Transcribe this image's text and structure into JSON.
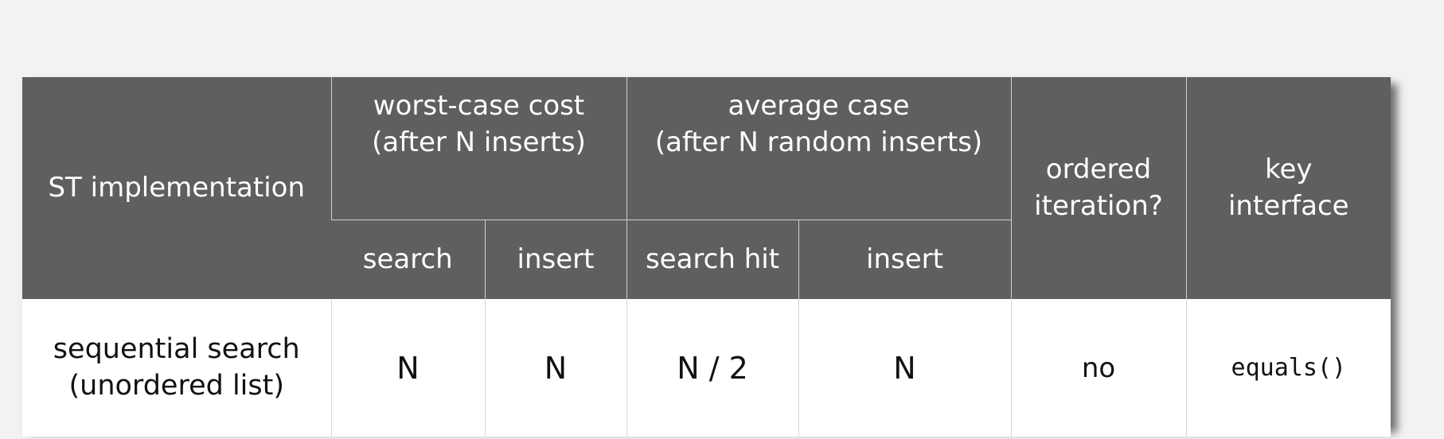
{
  "table": {
    "header": {
      "implementation": "ST implementation",
      "worst_case": {
        "line1": "worst-case cost",
        "line2": "(after N inserts)"
      },
      "average_case": {
        "line1": "average case",
        "line2": "(after N random inserts)"
      },
      "ordered": {
        "line1": "ordered",
        "line2": "iteration?"
      },
      "key_interface": {
        "line1": "key",
        "line2": "interface"
      },
      "sub": {
        "worst_search": "search",
        "worst_insert": "insert",
        "avg_search_hit": "search hit",
        "avg_insert": "insert"
      }
    },
    "rows": [
      {
        "implementation_line1": "sequential search",
        "implementation_line2": "(unordered list)",
        "worst_search": "N",
        "worst_insert": "N",
        "avg_search_hit": "N / 2",
        "avg_insert": "N",
        "ordered": "no",
        "key_interface": "equals()"
      }
    ]
  }
}
